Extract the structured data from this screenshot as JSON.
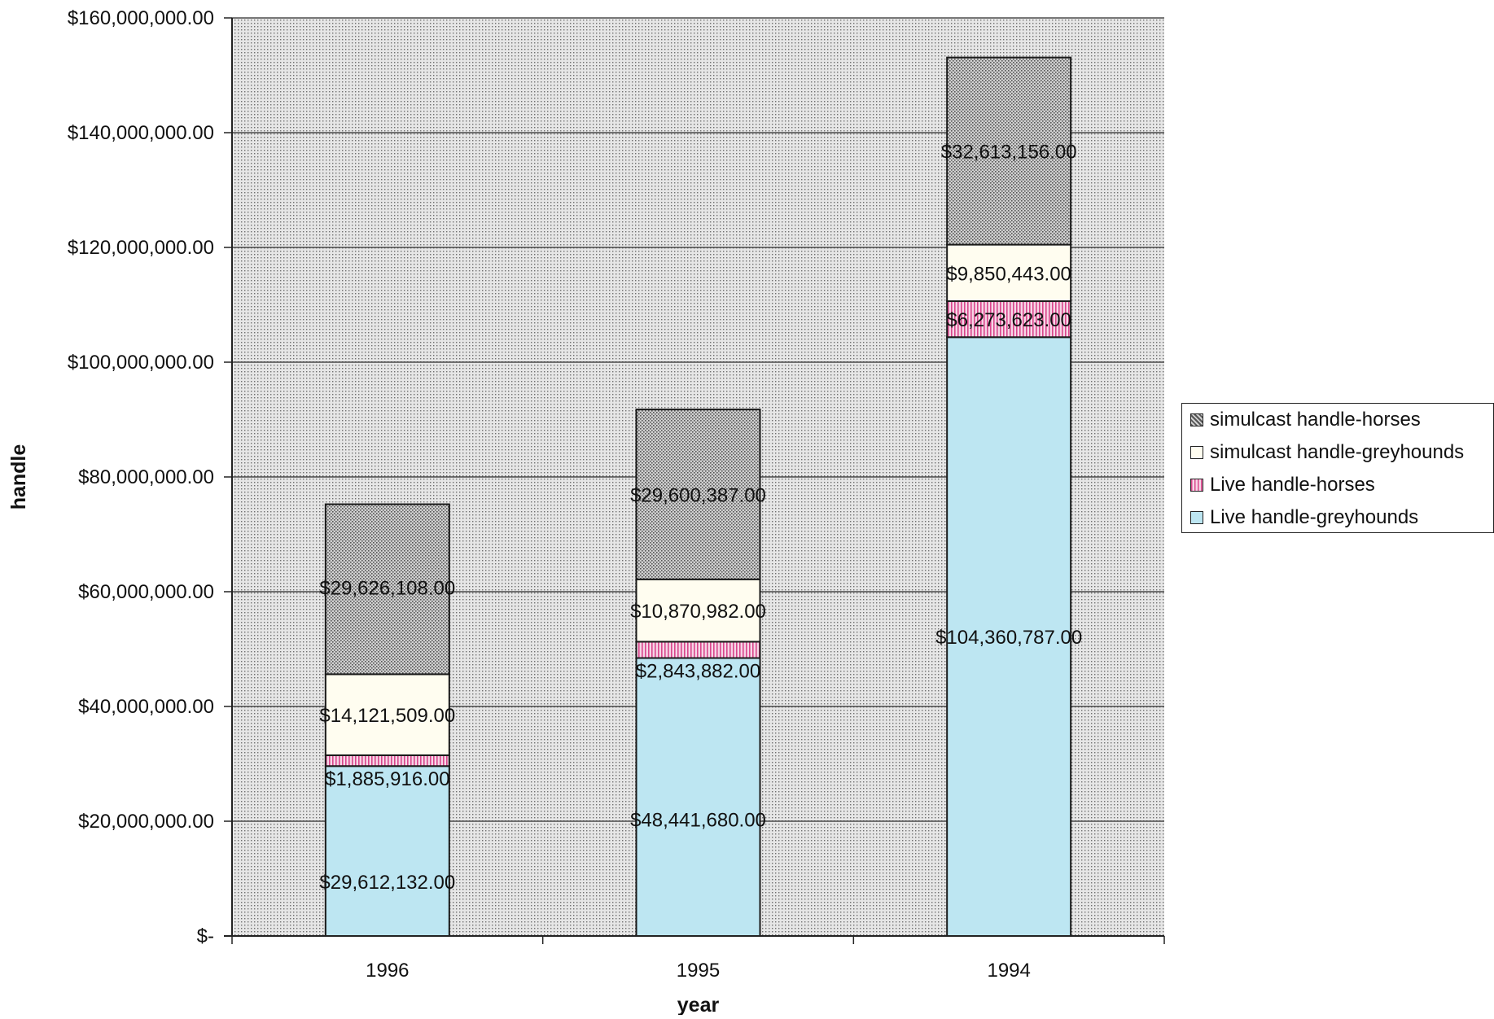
{
  "chart_data": {
    "type": "bar",
    "stacked": true,
    "categories": [
      "1996",
      "1995",
      "1994"
    ],
    "series": [
      {
        "name": "Live handle-greyhounds",
        "values": [
          29612132,
          48441680,
          104360787
        ],
        "labels": [
          "$29,612,132.00",
          "$48,441,680.00",
          "$104,360,787.00"
        ],
        "color": "#bde6f2"
      },
      {
        "name": "Live handle-horses",
        "values": [
          1885916,
          2843882,
          6273623
        ],
        "labels": [
          "$1,885,916.00",
          "$2,843,882.00",
          "$6,273,623.00"
        ],
        "color": "#e9a6c6"
      },
      {
        "name": "simulcast handle-greyhounds",
        "values": [
          14121509,
          10870982,
          9850443
        ],
        "labels": [
          "$14,121,509.00",
          "$10,870,982.00",
          "$9,850,443.00"
        ],
        "color": "#fffdf0"
      },
      {
        "name": "simulcast handle-horses",
        "values": [
          29626108,
          29600387,
          32613156
        ],
        "labels": [
          "$29,626,108.00",
          "$29,600,387.00",
          "$32,613,156.00"
        ],
        "color": "#bdbdbd"
      }
    ],
    "xlabel": "year",
    "ylabel": "handle",
    "ylim": [
      0,
      160000000
    ],
    "yticks": [
      {
        "value": 0,
        "label": "$-"
      },
      {
        "value": 20000000,
        "label": "$20,000,000.00"
      },
      {
        "value": 40000000,
        "label": "$40,000,000.00"
      },
      {
        "value": 60000000,
        "label": "$60,000,000.00"
      },
      {
        "value": 80000000,
        "label": "$80,000,000.00"
      },
      {
        "value": 100000000,
        "label": "$100,000,000.00"
      },
      {
        "value": 120000000,
        "label": "$120,000,000.00"
      },
      {
        "value": 140000000,
        "label": "$140,000,000.00"
      },
      {
        "value": 160000000,
        "label": "$160,000,000.00"
      }
    ],
    "legend": {
      "position": "right",
      "order": [
        "simulcast handle-horses",
        "simulcast handle-greyhounds",
        "Live handle-horses",
        "Live handle-greyhounds"
      ]
    },
    "grid": true,
    "plot_background": "#d9d9d9"
  }
}
